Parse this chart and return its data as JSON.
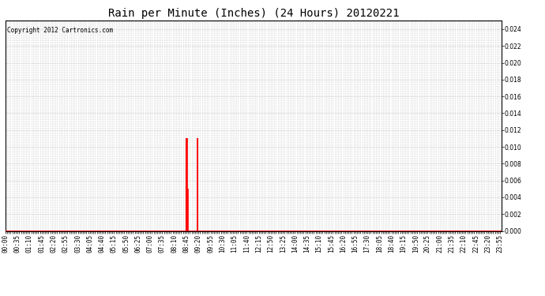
{
  "title": "Rain per Minute (Inches) (24 Hours) 20120221",
  "copyright_text": "Copyright 2012 Cartronics.com",
  "ylim": [
    0,
    0.025
  ],
  "yticks": [
    0.0,
    0.002,
    0.004,
    0.006,
    0.008,
    0.01,
    0.012,
    0.014,
    0.016,
    0.018,
    0.02,
    0.022,
    0.024
  ],
  "total_minutes": 1440,
  "rain_events": [
    {
      "minute": 524,
      "value": 0.011
    },
    {
      "minute": 525,
      "value": 0.011
    },
    {
      "minute": 526,
      "value": 0.011
    },
    {
      "minute": 527,
      "value": 0.011
    },
    {
      "minute": 528,
      "value": 0.005
    },
    {
      "minute": 529,
      "value": 0.005
    },
    {
      "minute": 557,
      "value": 0.011
    },
    {
      "minute": 558,
      "value": 0.011
    }
  ],
  "line_color": "#ff0000",
  "background_color": "#ffffff",
  "grid_color": "#cccccc",
  "title_fontsize": 10,
  "tick_fontsize": 5.5,
  "x_tick_interval": 5,
  "x_label_interval": 35,
  "figwidth": 6.9,
  "figheight": 3.75,
  "dpi": 100
}
